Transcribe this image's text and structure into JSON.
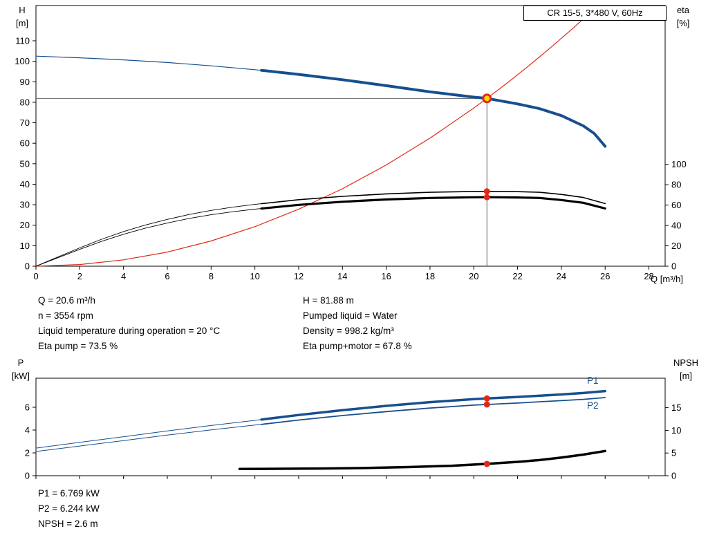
{
  "product": {
    "title_box": "CR 15-5, 3*480 V, 60Hz"
  },
  "colors": {
    "curve_blue": "#174f8f",
    "curve_black": "#000000",
    "system_red": "#e02817",
    "marker_yellow": "#ffd800",
    "marker_red": "#e02817",
    "duty_line_gray": "#666666"
  },
  "info_top": {
    "col1": [
      "Q = 20.6 m³/h",
      "n = 3554 rpm",
      "Liquid temperature during operation = 20 °C",
      "Eta pump = 73.5 %"
    ],
    "col2": [
      "H = 81.88 m",
      "Pumped liquid = Water",
      "Density = 998.2 kg/m³",
      "Eta pump+motor = 67.8 %"
    ]
  },
  "info_bottom": [
    "P1 = 6.769 kW",
    "P2 = 6.244 kW",
    "NPSH = 2.6 m"
  ],
  "chart_data": [
    {
      "type": "line",
      "name": "head-efficiency-chart",
      "title": "CR 15-5, 3*480 V, 60Hz",
      "axes": {
        "x": {
          "label": "Q [m³/h]",
          "min": 0,
          "max": 28.74,
          "ticks": [
            0,
            2,
            4,
            6,
            8,
            10,
            12,
            14,
            16,
            18,
            20,
            22,
            24,
            26,
            28
          ]
        },
        "y_left": {
          "label": [
            "H",
            "[m]"
          ],
          "min": 0,
          "max": 127,
          "ticks": [
            0,
            10,
            20,
            30,
            40,
            50,
            60,
            70,
            80,
            90,
            100,
            110
          ]
        },
        "y_right": {
          "label": [
            "eta",
            "[%]"
          ],
          "min": 0,
          "max": 100,
          "ticks": [
            0,
            20,
            40,
            60,
            80,
            100
          ]
        }
      },
      "duty_point": {
        "Q_m3h": 20.6,
        "H_m": 81.88,
        "eta_pump_pct": 73.5,
        "eta_pump_motor_pct": 67.8
      },
      "duty_lines": {
        "q": 20.6,
        "h": 81.88
      },
      "series": [
        {
          "name": "system-curve",
          "axis": "left",
          "color": "#e02817",
          "width": 1.2,
          "points": [
            [
              0,
              0
            ],
            [
              2,
              0.8
            ],
            [
              4,
              3.1
            ],
            [
              6,
              6.9
            ],
            [
              8,
              12.3
            ],
            [
              10,
              19.3
            ],
            [
              12,
              27.8
            ],
            [
              14,
              37.8
            ],
            [
              16,
              49.4
            ],
            [
              18,
              62.5
            ],
            [
              20,
              77.2
            ],
            [
              20.6,
              81.9
            ],
            [
              21.5,
              89.2
            ],
            [
              22.5,
              97.7
            ],
            [
              23.5,
              106.6
            ],
            [
              24.5,
              115.8
            ],
            [
              25.4,
              124.5
            ],
            [
              25.66,
              127
            ]
          ]
        },
        {
          "name": "eta-pump-motor-precurve",
          "axis": "right",
          "color": "#000000",
          "width": 0.9,
          "points": [
            [
              0,
              0
            ],
            [
              1,
              8.3
            ],
            [
              2,
              16.6
            ],
            [
              3,
              24.4
            ],
            [
              4,
              31.4
            ],
            [
              5,
              37.4
            ],
            [
              6,
              42.4
            ],
            [
              7,
              46.9
            ],
            [
              8,
              50.5
            ],
            [
              9,
              53.5
            ],
            [
              10,
              56
            ],
            [
              10.3,
              56.6
            ]
          ]
        },
        {
          "name": "eta-pump-motor-curve",
          "axis": "right",
          "color": "#000000",
          "width": 3.2,
          "points": [
            [
              10.3,
              56.6
            ],
            [
              12,
              60.2
            ],
            [
              14,
              63.3
            ],
            [
              16,
              65.5
            ],
            [
              18,
              67
            ],
            [
              20,
              67.7
            ],
            [
              20.6,
              67.8
            ],
            [
              22,
              67.5
            ],
            [
              23,
              67
            ],
            [
              24,
              65
            ],
            [
              25,
              62.3
            ],
            [
              26,
              56.7
            ]
          ]
        },
        {
          "name": "eta-pump-precurve",
          "axis": "right",
          "color": "#000000",
          "width": 0.9,
          "points": [
            [
              0,
              0
            ],
            [
              1,
              9
            ],
            [
              2,
              18
            ],
            [
              3,
              26.5
            ],
            [
              4,
              34
            ],
            [
              5,
              40.5
            ],
            [
              6,
              46
            ],
            [
              7,
              50.8
            ],
            [
              8,
              54.8
            ],
            [
              9,
              58
            ],
            [
              10,
              60.7
            ],
            [
              10.3,
              61.4
            ]
          ]
        },
        {
          "name": "eta-pump-curve",
          "axis": "right",
          "color": "#000000",
          "width": 1.6,
          "points": [
            [
              10.3,
              61.4
            ],
            [
              12,
              65.3
            ],
            [
              14,
              68.6
            ],
            [
              16,
              71
            ],
            [
              18,
              72.6
            ],
            [
              20,
              73.4
            ],
            [
              20.6,
              73.5
            ],
            [
              22,
              73.2
            ],
            [
              23,
              72.6
            ],
            [
              24,
              70.5
            ],
            [
              25,
              67.5
            ],
            [
              26,
              61.5
            ]
          ]
        },
        {
          "name": "hq-precurve",
          "axis": "left",
          "color": "#174f8f",
          "width": 1.2,
          "points": [
            [
              0,
              102.5
            ],
            [
              2,
              101.7
            ],
            [
              4,
              100.7
            ],
            [
              6,
              99.4
            ],
            [
              8,
              97.8
            ],
            [
              10,
              95.9
            ],
            [
              10.3,
              95.6
            ]
          ]
        },
        {
          "name": "hq-curve",
          "axis": "left",
          "color": "#174f8f",
          "width": 4,
          "points": [
            [
              10.3,
              95.6
            ],
            [
              12,
              93.6
            ],
            [
              14,
              91
            ],
            [
              16,
              88.1
            ],
            [
              18,
              85.1
            ],
            [
              20,
              82.5
            ],
            [
              20.6,
              81.88
            ],
            [
              22,
              79.2
            ],
            [
              23,
              76.9
            ],
            [
              24,
              73.5
            ],
            [
              25,
              68.5
            ],
            [
              25.5,
              64.8
            ],
            [
              26,
              58.5
            ]
          ]
        }
      ],
      "markers": [
        {
          "name": "duty-point-marker",
          "type": "duty-point",
          "q": 20.6,
          "v": 81.88,
          "axis": "left"
        },
        {
          "name": "eta-pump-dot",
          "type": "dot",
          "q": 20.6,
          "v": 73.5,
          "axis": "right"
        },
        {
          "name": "eta-pump-motor-dot",
          "type": "dot",
          "q": 20.6,
          "v": 67.8,
          "axis": "right"
        }
      ]
    },
    {
      "type": "line",
      "name": "power-npsh-chart",
      "axes": {
        "x": {
          "label": "",
          "min": 0,
          "max": 28.74,
          "ticks": [
            0,
            2,
            4,
            6,
            8,
            10,
            12,
            14,
            16,
            18,
            20,
            22,
            24,
            26,
            28
          ]
        },
        "y_left": {
          "label": [
            "P",
            "[kW]"
          ],
          "min": 0,
          "max": 8.5,
          "ticks": [
            0,
            2,
            4,
            6
          ]
        },
        "y_right": {
          "label": [
            "NPSH",
            "[m]"
          ],
          "min": 0,
          "max": 21,
          "ticks": [
            0,
            5,
            10,
            15
          ]
        }
      },
      "duty_point": {
        "Q_m3h": 20.6,
        "P1_kW": 6.769,
        "P2_kW": 6.244,
        "NPSH_m": 2.6
      },
      "series": [
        {
          "name": "p2-precurve",
          "axis": "left",
          "color": "#174f8f",
          "width": 1,
          "points": [
            [
              0,
              2.12
            ],
            [
              2,
              2.6
            ],
            [
              4,
              3.08
            ],
            [
              6,
              3.56
            ],
            [
              8,
              4.02
            ],
            [
              10,
              4.44
            ],
            [
              10.3,
              4.5
            ]
          ]
        },
        {
          "name": "p2-curve",
          "axis": "left",
          "color": "#174f8f",
          "width": 1.8,
          "points": [
            [
              10.3,
              4.5
            ],
            [
              12,
              4.88
            ],
            [
              14,
              5.27
            ],
            [
              16,
              5.62
            ],
            [
              18,
              5.93
            ],
            [
              20,
              6.19
            ],
            [
              20.6,
              6.244
            ],
            [
              22,
              6.37
            ],
            [
              24,
              6.58
            ],
            [
              25,
              6.69
            ],
            [
              26,
              6.85
            ]
          ]
        },
        {
          "name": "p1-precurve",
          "axis": "left",
          "color": "#174f8f",
          "width": 1,
          "points": [
            [
              0,
              2.42
            ],
            [
              2,
              2.92
            ],
            [
              4,
              3.42
            ],
            [
              6,
              3.92
            ],
            [
              8,
              4.4
            ],
            [
              10,
              4.85
            ],
            [
              10.3,
              4.92
            ]
          ]
        },
        {
          "name": "p1-curve",
          "axis": "left",
          "color": "#174f8f",
          "width": 3.5,
          "points": [
            [
              10.3,
              4.92
            ],
            [
              12,
              5.32
            ],
            [
              14,
              5.74
            ],
            [
              16,
              6.12
            ],
            [
              18,
              6.45
            ],
            [
              20,
              6.71
            ],
            [
              20.6,
              6.769
            ],
            [
              22,
              6.9
            ],
            [
              24,
              7.12
            ],
            [
              25,
              7.25
            ],
            [
              26,
              7.42
            ]
          ]
        },
        {
          "name": "npsh-curve",
          "axis": "right",
          "color": "#000000",
          "width": 3.5,
          "points": [
            [
              9.3,
              1.5
            ],
            [
              11,
              1.52
            ],
            [
              13,
              1.58
            ],
            [
              15,
              1.7
            ],
            [
              17,
              1.9
            ],
            [
              19,
              2.2
            ],
            [
              20.6,
              2.6
            ],
            [
              22,
              3.05
            ],
            [
              23,
              3.45
            ],
            [
              24,
              4
            ],
            [
              25,
              4.65
            ],
            [
              26,
              5.45
            ]
          ]
        }
      ],
      "markers": [
        {
          "name": "p1-dot",
          "type": "dot",
          "q": 20.6,
          "v": 6.769,
          "axis": "left"
        },
        {
          "name": "p2-dot",
          "type": "dot",
          "q": 20.6,
          "v": 6.244,
          "axis": "left"
        },
        {
          "name": "npsh-dot",
          "type": "dot",
          "q": 20.6,
          "v": 2.6,
          "axis": "right"
        }
      ],
      "curve_labels": [
        {
          "text": "P1"
        },
        {
          "text": "P2"
        }
      ]
    }
  ]
}
